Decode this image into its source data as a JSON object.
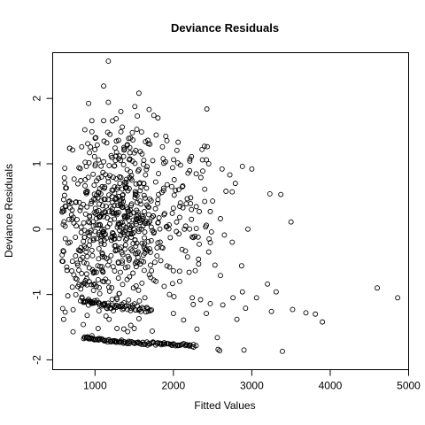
{
  "chart_data": {
    "type": "scatter",
    "title": "Deviance Residuals",
    "xlabel": "Fitted Values",
    "ylabel": "Deviance Residuals",
    "xlim": [
      460,
      5000
    ],
    "ylim": [
      -2.15,
      2.7
    ],
    "xticks": [
      1000,
      2000,
      3000,
      4000,
      5000
    ],
    "xtick_labels": [
      "1000",
      "2000",
      "3000",
      "4000",
      "5000"
    ],
    "yticks": [
      -2,
      -1,
      0,
      1,
      2
    ],
    "ytick_labels": [
      "-2",
      "-1",
      "0",
      "1",
      "2"
    ],
    "grid": false,
    "legend": "none",
    "marker": "open-circle",
    "points": [
      [
        1170,
        2.57
      ],
      [
        1110,
        2.19
      ],
      [
        1560,
        2.08
      ],
      [
        1170,
        1.94
      ],
      [
        1690,
        1.83
      ],
      [
        1330,
        1.8
      ],
      [
        1540,
        1.73
      ],
      [
        1270,
        1.69
      ],
      [
        1110,
        1.66
      ],
      [
        1750,
        1.74
      ],
      [
        960,
        1.66
      ],
      [
        960,
        1.49
      ],
      [
        870,
        1.52
      ],
      [
        1010,
        1.4
      ],
      [
        1190,
        1.45
      ],
      [
        1780,
        1.44
      ],
      [
        2060,
        1.33
      ],
      [
        1700,
        1.3
      ],
      [
        1300,
        1.36
      ],
      [
        1150,
        1.32
      ],
      [
        1860,
        1.26
      ],
      [
        830,
        1.26
      ],
      [
        930,
        1.17
      ],
      [
        1410,
        1.28
      ],
      [
        1600,
        1.15
      ],
      [
        1370,
        1.21
      ],
      [
        2230,
        1.11
      ],
      [
        2370,
        1.06
      ],
      [
        2420,
        1.06
      ],
      [
        2450,
        1.0
      ],
      [
        1900,
        1.03
      ],
      [
        2090,
        0.98
      ],
      [
        1480,
        1.04
      ],
      [
        1110,
        1.03
      ],
      [
        1250,
        0.97
      ],
      [
        890,
        0.96
      ],
      [
        2880,
        0.96
      ],
      [
        3000,
        0.92
      ],
      [
        2620,
        0.92
      ],
      [
        1990,
        0.94
      ],
      [
        1560,
        0.91
      ],
      [
        1810,
        0.85
      ],
      [
        2720,
        0.83
      ],
      [
        2350,
        0.79
      ],
      [
        2790,
        0.7
      ],
      [
        1470,
        0.75
      ],
      [
        1020,
        0.74
      ],
      [
        1190,
        0.82
      ],
      [
        1330,
        0.79
      ],
      [
        1620,
        0.7
      ],
      [
        1920,
        0.68
      ],
      [
        2120,
        0.66
      ],
      [
        1390,
        0.63
      ],
      [
        2670,
        0.58
      ],
      [
        2750,
        0.57
      ],
      [
        3230,
        0.54
      ],
      [
        3370,
        0.53
      ],
      [
        1060,
        0.62
      ],
      [
        900,
        0.58
      ],
      [
        1250,
        0.55
      ],
      [
        1520,
        0.55
      ],
      [
        1810,
        0.53
      ],
      [
        2010,
        0.52
      ],
      [
        2220,
        0.48
      ],
      [
        2500,
        0.43
      ],
      [
        1700,
        0.46
      ],
      [
        1350,
        0.47
      ],
      [
        1080,
        0.44
      ],
      [
        950,
        0.39
      ],
      [
        820,
        0.33
      ],
      [
        1140,
        0.35
      ],
      [
        1460,
        0.36
      ],
      [
        1660,
        0.37
      ],
      [
        2000,
        0.32
      ],
      [
        2230,
        0.3
      ],
      [
        2470,
        0.27
      ],
      [
        2330,
        0.27
      ],
      [
        580,
        0.26
      ],
      [
        700,
        0.22
      ],
      [
        880,
        0.23
      ],
      [
        1020,
        0.27
      ],
      [
        1280,
        0.25
      ],
      [
        1530,
        0.29
      ],
      [
        1880,
        0.22
      ],
      [
        2080,
        0.18
      ],
      [
        2600,
        0.16
      ],
      [
        3500,
        0.11
      ],
      [
        1200,
        0.14
      ],
      [
        1380,
        0.19
      ],
      [
        1650,
        0.12
      ],
      [
        930,
        0.1
      ],
      [
        760,
        0.05
      ],
      [
        1060,
        0.07
      ],
      [
        1320,
        0.03
      ],
      [
        1560,
        0.0
      ],
      [
        1920,
        0.04
      ],
      [
        2140,
        0.0
      ],
      [
        2420,
        0.06
      ],
      [
        2950,
        0.0
      ],
      [
        1750,
        -0.06
      ],
      [
        1450,
        -0.07
      ],
      [
        1110,
        -0.04
      ],
      [
        870,
        -0.02
      ],
      [
        2650,
        -0.09
      ],
      [
        2240,
        -0.12
      ],
      [
        2750,
        -0.2
      ],
      [
        1960,
        -0.13
      ],
      [
        680,
        -0.2
      ],
      [
        980,
        -0.17
      ],
      [
        1240,
        -0.15
      ],
      [
        1680,
        -0.19
      ],
      [
        1390,
        -0.24
      ],
      [
        1850,
        -0.28
      ],
      [
        2110,
        -0.31
      ],
      [
        2450,
        -0.35
      ],
      [
        790,
        -0.32
      ],
      [
        1050,
        -0.3
      ],
      [
        1550,
        -0.35
      ],
      [
        1790,
        -0.41
      ],
      [
        2320,
        -0.46
      ],
      [
        2530,
        -0.55
      ],
      [
        2870,
        -0.56
      ],
      [
        580,
        -0.49
      ],
      [
        640,
        -0.58
      ],
      [
        900,
        -0.42
      ],
      [
        1150,
        -0.45
      ],
      [
        1300,
        -0.52
      ],
      [
        1620,
        -0.5
      ],
      [
        1950,
        -0.58
      ],
      [
        2200,
        -0.66
      ],
      [
        2600,
        -0.71
      ],
      [
        3200,
        -0.84
      ],
      [
        730,
        -0.7
      ],
      [
        980,
        -0.67
      ],
      [
        1250,
        -0.64
      ],
      [
        1440,
        -0.73
      ],
      [
        1710,
        -0.74
      ],
      [
        2080,
        -0.8
      ],
      [
        2880,
        -0.96
      ],
      [
        3310,
        -0.96
      ],
      [
        3060,
        -1.05
      ],
      [
        2760,
        -1.05
      ],
      [
        4600,
        -0.9
      ],
      [
        4860,
        -1.05
      ],
      [
        1100,
        -0.8
      ],
      [
        1490,
        -0.9
      ],
      [
        1950,
        -1.0
      ],
      [
        2240,
        -1.05
      ],
      [
        2470,
        -1.14
      ],
      [
        2630,
        -1.16
      ],
      [
        2920,
        -1.21
      ],
      [
        3250,
        -1.26
      ],
      [
        3520,
        -1.23
      ],
      [
        3690,
        -1.28
      ],
      [
        3810,
        -1.3
      ],
      [
        3900,
        -1.42
      ],
      [
        1350,
        -1.23
      ],
      [
        1660,
        -1.2
      ],
      [
        2000,
        -1.29
      ],
      [
        2420,
        -1.29
      ],
      [
        900,
        -1.32
      ],
      [
        1050,
        -1.25
      ],
      [
        1180,
        -1.38
      ],
      [
        1560,
        -1.37
      ],
      [
        2130,
        -1.39
      ],
      [
        2810,
        -1.38
      ],
      [
        620,
        -1.27
      ],
      [
        600,
        -1.38
      ],
      [
        850,
        -1.46
      ],
      [
        1040,
        -1.52
      ],
      [
        1280,
        -1.52
      ],
      [
        1500,
        -1.52
      ],
      [
        2300,
        -1.53
      ],
      [
        1730,
        -1.56
      ],
      [
        2560,
        -1.66
      ],
      [
        2900,
        -1.85
      ],
      [
        3390,
        -1.87
      ],
      [
        2590,
        -1.86
      ],
      [
        720,
        -1.57
      ],
      [
        2570,
        -1.84
      ]
    ],
    "curves": [
      {
        "x_start": 820,
        "x_end": 1730,
        "a": -1.09,
        "b": -2.3,
        "n": 70,
        "jitter_y": 0.025
      },
      {
        "x_start": 860,
        "x_end": 2280,
        "a": -1.66,
        "b": -1.5,
        "n": 110,
        "jitter_y": 0.012
      },
      {
        "x_start": 760,
        "x_end": 1050,
        "a": -0.82,
        "b": -2.6,
        "n": 14,
        "jitter_y": 0.03
      }
    ],
    "cloud": {
      "n": 560,
      "seed": 7,
      "x_min": 580,
      "x_max": 2500,
      "x_mode": 1350,
      "y_center": 0.15,
      "y_spread": 0.65,
      "y_floor_a": -1.7,
      "y_floor_b": -1.2
    }
  }
}
